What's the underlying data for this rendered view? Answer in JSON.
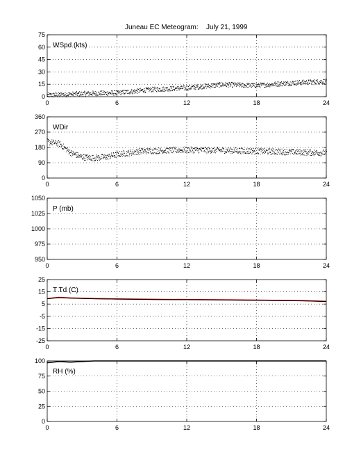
{
  "title": "Juneau EC Meteogram:",
  "date": "July 21, 1999",
  "chart_data": [
    {
      "type": "scatter",
      "label": "WSpd (kts)",
      "xlim": [
        0,
        24
      ],
      "ylim": [
        0,
        75
      ],
      "xticks": [
        0,
        6,
        12,
        18,
        24
      ],
      "yticks": [
        0,
        15,
        30,
        45,
        60,
        75
      ],
      "grid": true,
      "series": [
        {
          "color": "#000000",
          "trend": [
            [
              0,
              2
            ],
            [
              3,
              4
            ],
            [
              6,
              5
            ],
            [
              9,
              9
            ],
            [
              12,
              11
            ],
            [
              15,
              15
            ],
            [
              18,
              14
            ],
            [
              21,
              17
            ],
            [
              24,
              19
            ]
          ],
          "spread": 3
        }
      ]
    },
    {
      "type": "scatter",
      "label": "WDir",
      "xlim": [
        0,
        24
      ],
      "ylim": [
        0,
        360
      ],
      "xticks": [
        0,
        6,
        12,
        18,
        24
      ],
      "yticks": [
        0,
        90,
        180,
        270,
        360
      ],
      "grid": true,
      "series": [
        {
          "color": "#000000",
          "trend": [
            [
              0,
              215
            ],
            [
              1,
              205
            ],
            [
              2,
              150
            ],
            [
              3,
              125
            ],
            [
              4,
              120
            ],
            [
              5,
              125
            ],
            [
              6,
              140
            ],
            [
              8,
              160
            ],
            [
              12,
              168
            ],
            [
              15,
              165
            ],
            [
              18,
              160
            ],
            [
              21,
              155
            ],
            [
              24,
              150
            ]
          ],
          "spread": 18
        }
      ]
    },
    {
      "type": "line",
      "label": "P (mb)",
      "xlim": [
        0,
        24
      ],
      "ylim": [
        950,
        1050
      ],
      "xticks": [
        0,
        6,
        12,
        18,
        24
      ],
      "yticks": [
        950,
        975,
        1000,
        1025,
        1050
      ],
      "grid": true,
      "series": []
    },
    {
      "type": "line",
      "label": "T Td (C)",
      "xlim": [
        0,
        24
      ],
      "ylim": [
        -25,
        25
      ],
      "xticks": [
        0,
        6,
        12,
        18,
        24
      ],
      "yticks": [
        -25,
        -15,
        -5,
        5,
        15,
        25
      ],
      "grid": true,
      "series": [
        {
          "color": "#cc0000",
          "x": [
            0,
            1,
            2,
            4,
            6,
            8,
            10,
            12,
            14,
            16,
            18,
            20,
            22,
            23,
            24
          ],
          "y": [
            9.5,
            10.5,
            10,
            9.5,
            9.2,
            9,
            8.8,
            8.7,
            8.6,
            8.4,
            8.2,
            8,
            7.8,
            7.5,
            7.2
          ]
        },
        {
          "color": "#000000",
          "x": [
            0,
            1,
            2,
            4,
            6,
            8,
            10,
            12,
            14,
            16,
            18,
            20,
            22,
            23,
            24
          ],
          "y": [
            9.3,
            10.2,
            9.8,
            9.3,
            9,
            8.8,
            8.6,
            8.5,
            8.4,
            8.2,
            8,
            7.8,
            7.6,
            7.3,
            7
          ]
        }
      ]
    },
    {
      "type": "line",
      "label": "RH (%)",
      "xlim": [
        0,
        24
      ],
      "ylim": [
        0,
        100
      ],
      "xticks": [
        0,
        6,
        12,
        18,
        24
      ],
      "yticks": [
        0,
        25,
        50,
        75,
        100
      ],
      "grid": true,
      "series": [
        {
          "color": "#000000",
          "x": [
            0,
            1,
            2,
            3,
            4,
            5,
            6,
            8,
            10,
            12,
            15,
            18,
            21,
            24
          ],
          "y": [
            97,
            99,
            98,
            99,
            100,
            100,
            100,
            100,
            100,
            100,
            100,
            100,
            100,
            100
          ]
        }
      ]
    }
  ]
}
